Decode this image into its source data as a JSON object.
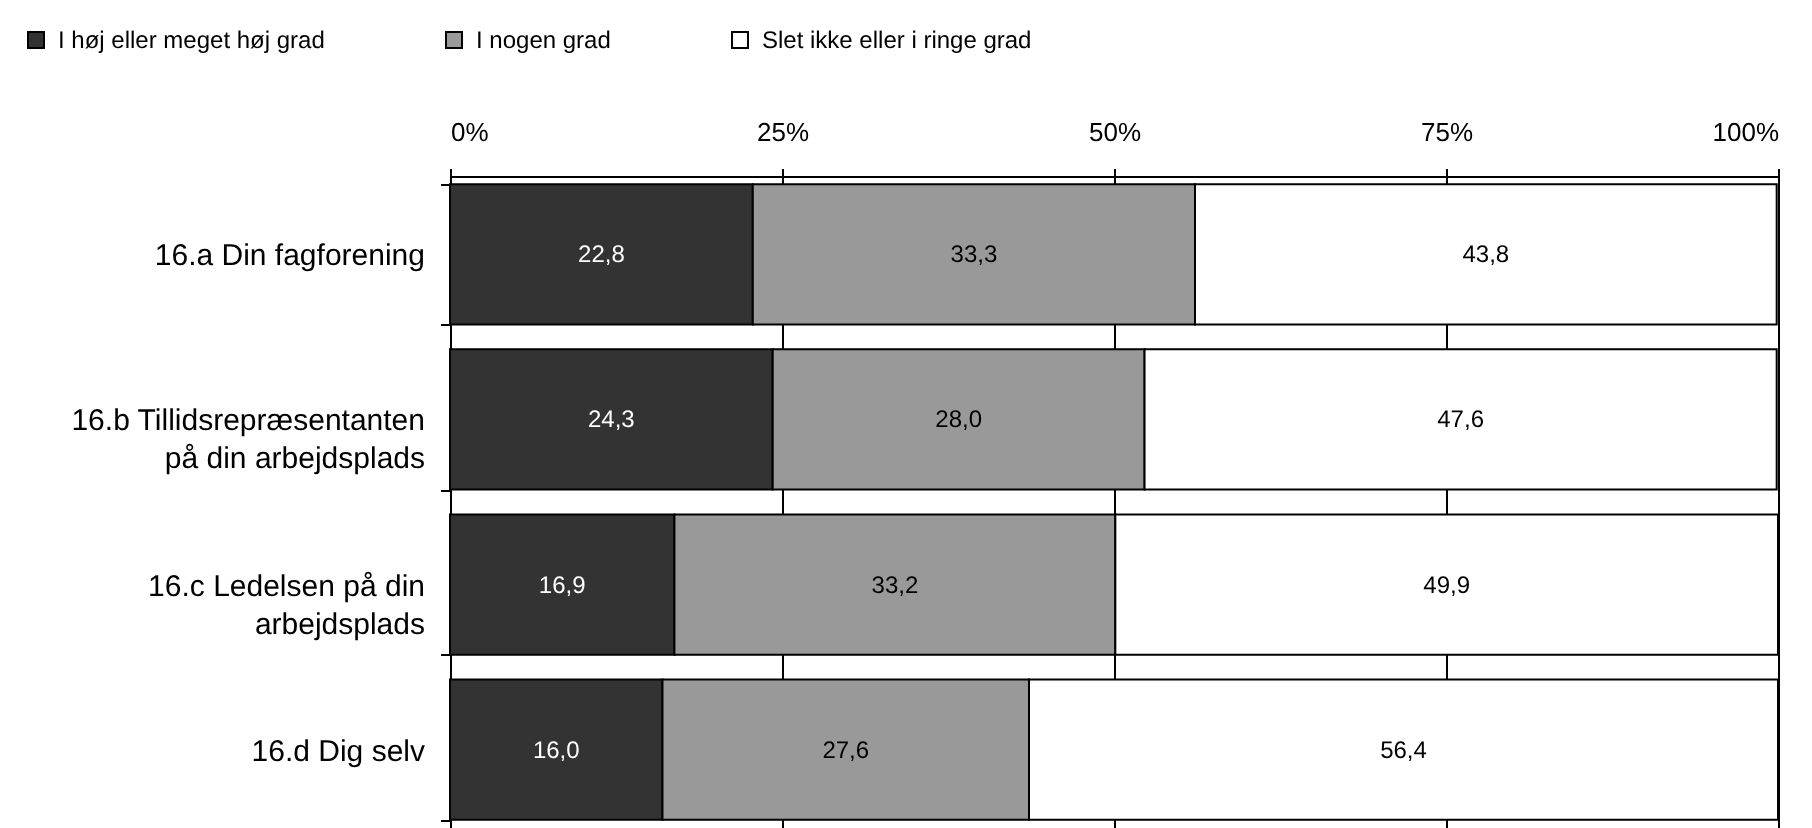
{
  "chart_data": {
    "type": "bar",
    "orientation": "horizontal",
    "stacked": true,
    "categories": [
      "16.a Din fagforening",
      "16.b Tillidsrepræsentanten på din arbejdsplads",
      "16.c Ledelsen på din arbejdsplads",
      "16.d Dig selv"
    ],
    "series": [
      {
        "name": "I høj eller meget høj grad",
        "color": "#333333",
        "values": [
          22.8,
          24.3,
          16.9,
          16.0
        ],
        "value_labels": [
          "22,8",
          "24,3",
          "16,9",
          "16,0"
        ]
      },
      {
        "name": "I nogen grad",
        "color": "#999999",
        "values": [
          33.3,
          28.0,
          33.2,
          27.6
        ],
        "value_labels": [
          "33,3",
          "28,0",
          "33,2",
          "27,6"
        ]
      },
      {
        "name": "Slet ikke eller i ringe grad",
        "color": "#ffffff",
        "values": [
          43.8,
          47.6,
          49.9,
          56.4
        ],
        "value_labels": [
          "43,8",
          "47,6",
          "49,9",
          "56,4"
        ]
      }
    ],
    "xlim": [
      0,
      100
    ],
    "xticks": [
      {
        "value": 0,
        "label": "0%"
      },
      {
        "value": 25,
        "label": "25%"
      },
      {
        "value": 50,
        "label": "50%"
      },
      {
        "value": 75,
        "label": "75%"
      },
      {
        "value": 100,
        "label": "100%"
      }
    ],
    "grid": "x",
    "legend": "top left"
  }
}
